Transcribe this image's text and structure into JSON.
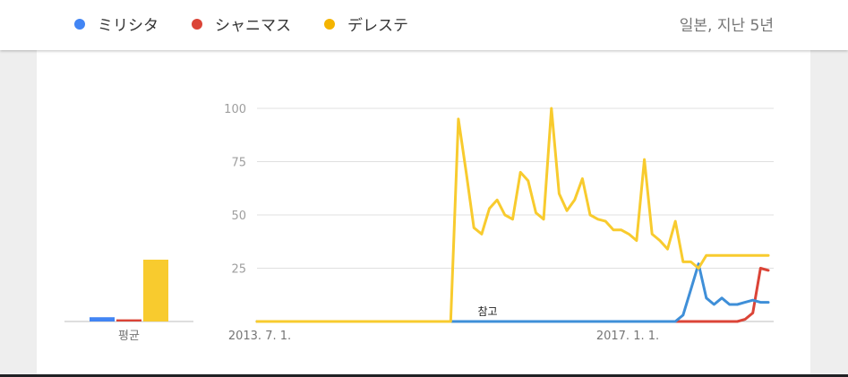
{
  "legend": {
    "items": [
      {
        "label": "ミリシタ",
        "color": "#4285f4"
      },
      {
        "label": "シャニマス",
        "color": "#db4437"
      },
      {
        "label": "デレステ",
        "color": "#f4b400"
      }
    ],
    "meta": "일본, 지난 5년"
  },
  "chart_data": [
    {
      "type": "bar",
      "categories": [
        "평균"
      ],
      "series": [
        {
          "name": "ミリシタ",
          "color": "#4285f4",
          "values": [
            2
          ]
        },
        {
          "name": "シャニマス",
          "color": "#db4437",
          "values": [
            1
          ]
        },
        {
          "name": "デレステ",
          "color": "#f8cb2e",
          "values": [
            29
          ]
        }
      ],
      "xlabel": "평균",
      "ylim": [
        0,
        100
      ]
    },
    {
      "type": "line",
      "yticks": [
        25,
        50,
        75,
        100
      ],
      "xticks": [
        "2013. 7. 1.",
        "2017. 1. 1."
      ],
      "ylim": [
        0,
        100
      ],
      "grid": true,
      "annotation": "참고",
      "series": [
        {
          "name": "ミリシタ",
          "color": "#3f8fd8",
          "x": [
            0,
            25,
            26,
            27,
            28,
            29,
            30,
            31,
            32,
            33,
            34,
            35,
            36,
            37,
            38,
            39,
            40,
            41,
            42,
            43,
            44,
            45,
            46,
            47,
            48,
            49,
            50,
            51,
            52,
            53,
            54,
            55,
            56,
            57,
            58,
            59,
            60,
            61,
            62,
            63,
            64,
            65,
            66
          ],
          "y": [
            0,
            0,
            0,
            0,
            0,
            0,
            0,
            0,
            0,
            0,
            0,
            0,
            0,
            0,
            0,
            0,
            0,
            0,
            0,
            0,
            0,
            0,
            0,
            0,
            0,
            0,
            0,
            0,
            0,
            0,
            0,
            3,
            15,
            27,
            11,
            8,
            11,
            8,
            8,
            9,
            10,
            9,
            9
          ]
        },
        {
          "name": "シャニマス",
          "color": "#db4437",
          "x": [
            0,
            25,
            26,
            27,
            28,
            29,
            30,
            31,
            32,
            33,
            34,
            35,
            36,
            37,
            38,
            39,
            40,
            41,
            42,
            43,
            44,
            45,
            46,
            47,
            48,
            49,
            50,
            51,
            52,
            53,
            54,
            55,
            56,
            57,
            58,
            59,
            60,
            61,
            62,
            63,
            64,
            65,
            66
          ],
          "y": [
            0,
            0,
            0,
            0,
            0,
            0,
            0,
            0,
            0,
            0,
            0,
            0,
            0,
            0,
            0,
            0,
            0,
            0,
            0,
            0,
            0,
            0,
            0,
            0,
            0,
            0,
            0,
            0,
            0,
            0,
            0,
            0,
            0,
            0,
            0,
            0,
            0,
            0,
            0,
            1,
            4,
            25,
            24
          ]
        },
        {
          "name": "デレステ",
          "color": "#f8cb2e",
          "x": [
            0,
            25,
            26,
            27,
            28,
            29,
            30,
            31,
            32,
            33,
            34,
            35,
            36,
            37,
            38,
            39,
            40,
            41,
            42,
            43,
            44,
            45,
            46,
            47,
            48,
            49,
            50,
            51,
            52,
            53,
            54,
            55,
            56,
            57,
            58,
            59,
            60,
            61,
            62,
            63,
            64,
            65,
            66
          ],
          "y": [
            0,
            0,
            95,
            70,
            44,
            41,
            53,
            57,
            50,
            48,
            70,
            66,
            51,
            48,
            100,
            60,
            52,
            57,
            67,
            50,
            48,
            47,
            43,
            43,
            41,
            38,
            76,
            41,
            38,
            34,
            47,
            28,
            28,
            25,
            31,
            31,
            31,
            31,
            31,
            31,
            31,
            31,
            31
          ]
        }
      ]
    }
  ]
}
